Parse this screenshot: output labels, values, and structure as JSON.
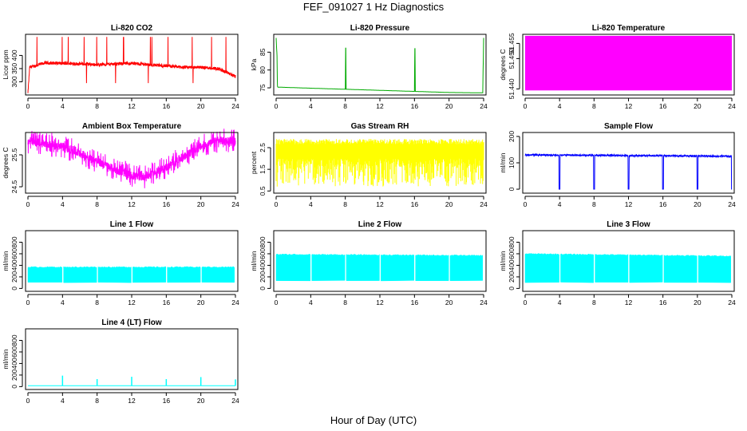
{
  "figure": {
    "title": "FEF_091027  1 Hz Diagnostics",
    "xlabel": "Hour of Day (UTC)"
  },
  "chart_data": [
    {
      "type": "line",
      "title": "Li-820 CO2",
      "ylabel": "Licor ppm",
      "color": "#ff0000",
      "xticks": [
        0,
        4,
        8,
        12,
        16,
        20,
        24
      ],
      "yticks": [
        300,
        350,
        400
      ],
      "xlim": [
        0,
        24
      ],
      "ylim": [
        250,
        480
      ],
      "baseline": 360,
      "noise": 12,
      "spikes_up_to": 470,
      "spikes_down_to": 255,
      "series": [
        {
          "x": [
            0,
            0.2,
            1,
            2,
            4,
            6,
            8,
            10,
            12,
            14,
            16,
            18,
            20,
            22,
            24
          ],
          "values": [
            255,
            355,
            362,
            372,
            370,
            368,
            365,
            368,
            370,
            365,
            360,
            355,
            355,
            350,
            320
          ]
        }
      ]
    },
    {
      "type": "line",
      "title": "Li-820 Pressure",
      "ylabel": "kPa",
      "color": "#00aa00",
      "xticks": [
        0,
        4,
        8,
        12,
        16,
        20,
        24
      ],
      "yticks": [
        75,
        80,
        85
      ],
      "xlim": [
        0,
        24
      ],
      "ylim": [
        73,
        90
      ],
      "series": [
        {
          "x": [
            0,
            0.1,
            0.15,
            0.2,
            4,
            8,
            8.05,
            8.1,
            12,
            16,
            16.05,
            16.1,
            20,
            23.9,
            24
          ],
          "values": [
            89,
            84,
            75.5,
            75.2,
            74.9,
            74.6,
            89,
            74.6,
            74.3,
            74.0,
            89,
            74.0,
            73.7,
            73.6,
            89
          ]
        }
      ]
    },
    {
      "type": "area",
      "title": "Li-820 Temperature",
      "ylabel": "degrees C",
      "color": "#ff00ff",
      "xticks": [
        0,
        4,
        8,
        12,
        16,
        20,
        24
      ],
      "yticks": [
        51.44,
        51.45,
        51.455
      ],
      "ytick_labels": [
        "51.440",
        "51.450",
        "51.455"
      ],
      "xlim": [
        0,
        24
      ],
      "ylim": [
        51.438,
        51.458
      ],
      "series": [
        {
          "x": [
            0,
            24
          ],
          "y_low": 51.4395,
          "y_high": 51.4575
        }
      ]
    },
    {
      "type": "line",
      "title": "Ambient Box Temperature",
      "ylabel": "degrees C",
      "color": "#ff00ff",
      "xticks": [
        0,
        4,
        8,
        12,
        16,
        20,
        24
      ],
      "yticks": [
        24.5,
        25.5
      ],
      "xlim": [
        0,
        24
      ],
      "ylim": [
        24.3,
        26.2
      ],
      "noise": 0.25,
      "series": [
        {
          "x": [
            0,
            2,
            4,
            6,
            8,
            10,
            12,
            13,
            14,
            16,
            18,
            20,
            22,
            24
          ],
          "values": [
            25.9,
            25.85,
            25.75,
            25.55,
            25.3,
            25.05,
            24.85,
            24.8,
            24.85,
            25.1,
            25.45,
            25.75,
            25.95,
            25.95
          ]
        }
      ]
    },
    {
      "type": "area",
      "title": "Gas Stream RH",
      "ylabel": "percent",
      "color": "#ffff00",
      "xticks": [
        0,
        4,
        8,
        12,
        16,
        20,
        24
      ],
      "yticks": [
        0.5,
        1.5,
        2.5
      ],
      "xlim": [
        0,
        24
      ],
      "ylim": [
        0.4,
        3.2
      ],
      "series": [
        {
          "x": [
            0,
            24
          ],
          "y_low": 0.7,
          "y_high": 3.0,
          "dense_band": [
            1.6,
            2.9
          ]
        }
      ]
    },
    {
      "type": "line",
      "title": "Sample Flow",
      "ylabel": "ml/min",
      "color": "#0000ff",
      "xticks": [
        0,
        4,
        8,
        12,
        16,
        20,
        24
      ],
      "yticks": [
        0,
        100,
        200
      ],
      "xlim": [
        0,
        24
      ],
      "ylim": [
        -15,
        215
      ],
      "baseline": 128,
      "noise": 6,
      "dropouts": [
        4,
        8,
        12,
        16,
        20,
        24
      ],
      "dropout_value": 0,
      "series": [
        {
          "x": [
            0,
            24
          ],
          "values": [
            130,
            125
          ]
        }
      ]
    },
    {
      "type": "area",
      "title": "Line 1 Flow",
      "ylabel": "ml/min",
      "color": "#00ffff",
      "xticks": [
        0,
        4,
        8,
        12,
        16,
        20,
        24
      ],
      "yticks": [
        0,
        200,
        400,
        600,
        800
      ],
      "xlim": [
        0,
        24
      ],
      "ylim": [
        -50,
        1000
      ],
      "gaps": [
        4,
        8,
        12,
        16,
        20
      ],
      "series": [
        {
          "x": [
            0,
            24
          ],
          "y_low": 100,
          "y_high": 370
        }
      ]
    },
    {
      "type": "area",
      "title": "Line 2 Flow",
      "ylabel": "ml/min",
      "color": "#00ffff",
      "xticks": [
        0,
        4,
        8,
        12,
        16,
        20,
        24
      ],
      "yticks": [
        0,
        200,
        400,
        600,
        800
      ],
      "xlim": [
        0,
        24
      ],
      "ylim": [
        -50,
        1000
      ],
      "gaps": [
        4,
        8,
        12,
        16,
        20
      ],
      "series": [
        {
          "x": [
            0,
            24
          ],
          "y_low": 130,
          "y_high": [
            590,
            570
          ]
        }
      ]
    },
    {
      "type": "area",
      "title": "Line 3 Flow",
      "ylabel": "ml/min",
      "color": "#00ffff",
      "xticks": [
        0,
        4,
        8,
        12,
        16,
        20,
        24
      ],
      "yticks": [
        0,
        200,
        400,
        600,
        800
      ],
      "xlim": [
        0,
        24
      ],
      "ylim": [
        -50,
        1000
      ],
      "gaps": [
        4,
        8,
        12,
        16,
        20
      ],
      "series": [
        {
          "x": [
            0,
            24
          ],
          "y_low": 100,
          "y_high": [
            600,
            560
          ]
        }
      ]
    },
    {
      "type": "line",
      "title": "Line 4 (LT) Flow",
      "ylabel": "ml/min",
      "color": "#00ffff",
      "xticks": [
        0,
        4,
        8,
        12,
        16,
        20,
        24
      ],
      "yticks": [
        0,
        200,
        400,
        600,
        800
      ],
      "xlim": [
        0,
        24
      ],
      "ylim": [
        -50,
        1000
      ],
      "baseline": 15,
      "spikes": [
        {
          "x": 4,
          "y": 190
        },
        {
          "x": 8,
          "y": 130
        },
        {
          "x": 12,
          "y": 170
        },
        {
          "x": 16,
          "y": 130
        },
        {
          "x": 20,
          "y": 165
        },
        {
          "x": 24,
          "y": 125
        }
      ],
      "series": [
        {
          "x": [
            0,
            24
          ],
          "values": [
            15,
            15
          ]
        }
      ]
    }
  ]
}
